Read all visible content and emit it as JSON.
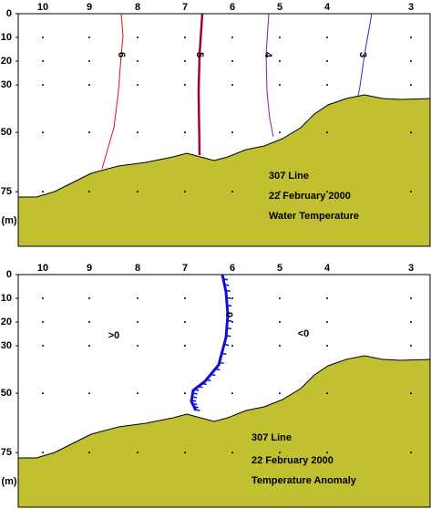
{
  "chart_data": [
    {
      "type": "contour",
      "title": [
        "307 Line",
        "22 February 2000",
        "Water Temperature"
      ],
      "categories": [
        "10",
        "9",
        "8",
        "7",
        "6",
        "5",
        "4",
        "3"
      ],
      "ylim": [
        0,
        98
      ],
      "yticks": [
        0,
        10,
        20,
        30,
        50,
        75
      ],
      "ylabel": "(m)",
      "levels": [
        {
          "value": 6,
          "color": "#e01010"
        },
        {
          "value": 5,
          "color": "#a00040"
        },
        {
          "value": 4,
          "color": "#8020a0"
        },
        {
          "value": 3,
          "color": "#3030c0"
        }
      ],
      "annotations": [],
      "fill": "#c0c030"
    },
    {
      "type": "contour",
      "title": [
        "307 Line",
        "22 February 2000",
        "Temperature Anomaly"
      ],
      "categories": [
        "10",
        "9",
        "8",
        "7",
        "6",
        "5",
        "4",
        "3"
      ],
      "ylim": [
        0,
        98
      ],
      "yticks": [
        0,
        10,
        20,
        30,
        50,
        75
      ],
      "ylabel": "(m)",
      "levels": [
        {
          "value": 0,
          "color": "#1010d0"
        }
      ],
      "annotations": [
        ">0",
        "<0"
      ],
      "fill": "#c0c030"
    }
  ]
}
